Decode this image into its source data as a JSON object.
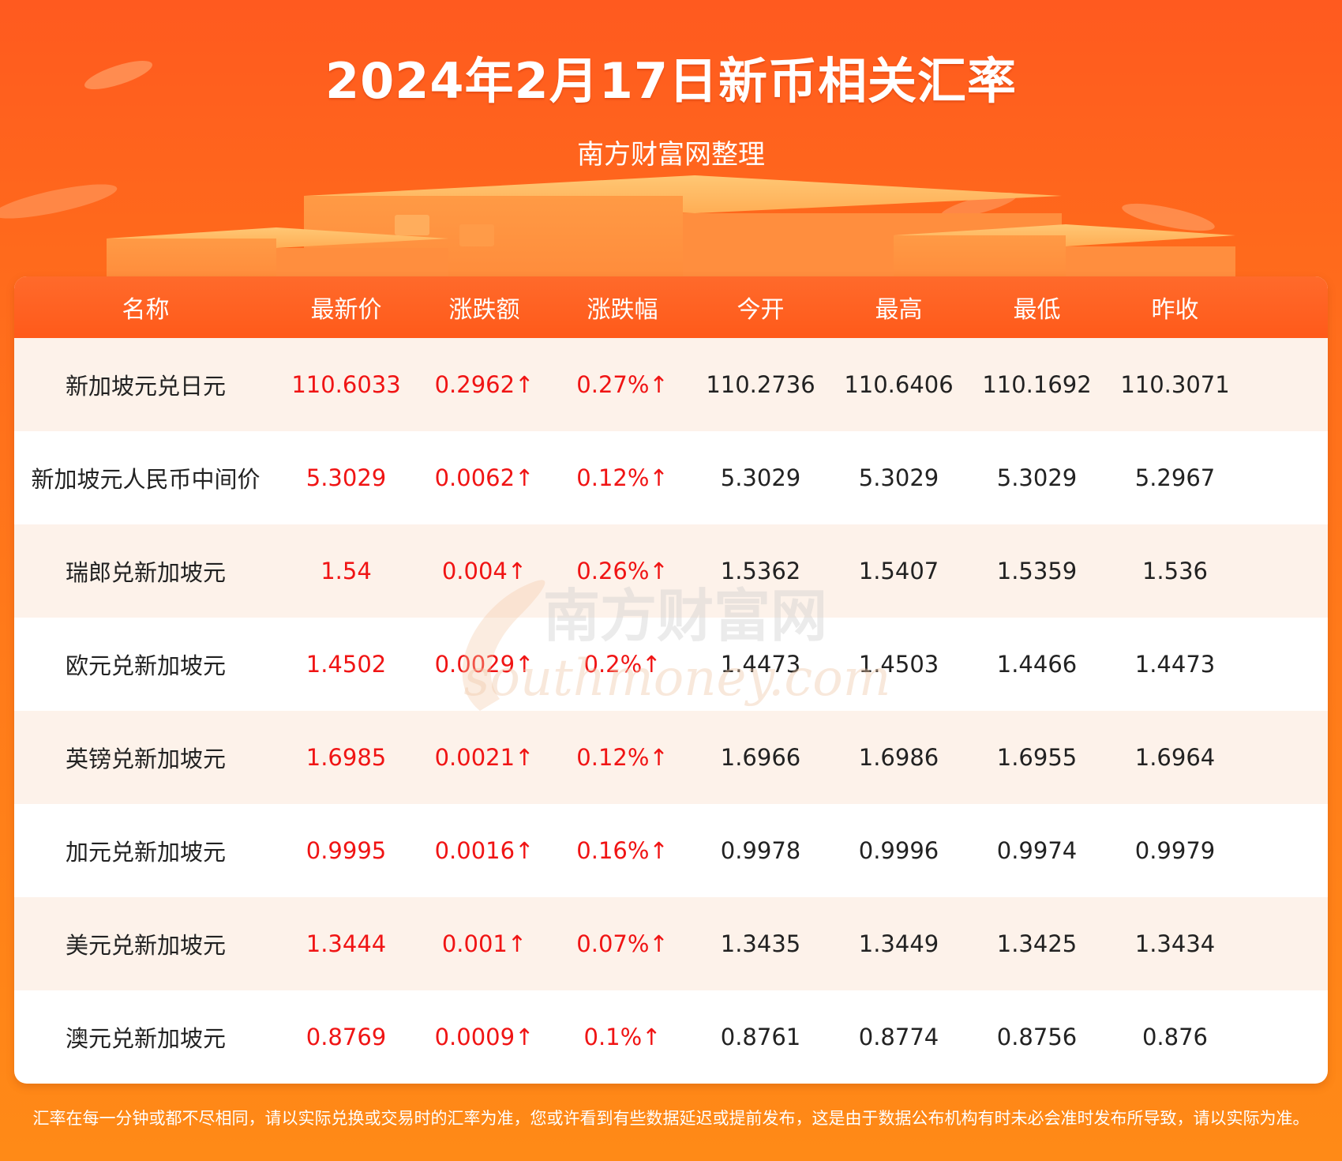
{
  "header": {
    "title": "2024年2月17日新币相关汇率",
    "subtitle": "南方财富网整理"
  },
  "colors": {
    "up": "#f01414",
    "header_bg": "#ff5a1a",
    "row_alt_bg": "#fdf2ea"
  },
  "table": {
    "columns": [
      "名称",
      "最新价",
      "涨跌额",
      "涨跌幅",
      "今开",
      "最高",
      "最低",
      "昨收"
    ],
    "rows": [
      {
        "name": "新加坡元兑日元",
        "latest": "110.6033",
        "change": "0.2962↑",
        "change_pct": "0.27%↑",
        "open": "110.2736",
        "high": "110.6406",
        "low": "110.1692",
        "prev_close": "110.3071"
      },
      {
        "name": "新加坡元人民币中间价",
        "latest": "5.3029",
        "change": "0.0062↑",
        "change_pct": "0.12%↑",
        "open": "5.3029",
        "high": "5.3029",
        "low": "5.3029",
        "prev_close": "5.2967"
      },
      {
        "name": "瑞郎兑新加坡元",
        "latest": "1.54",
        "change": "0.004↑",
        "change_pct": "0.26%↑",
        "open": "1.5362",
        "high": "1.5407",
        "low": "1.5359",
        "prev_close": "1.536"
      },
      {
        "name": "欧元兑新加坡元",
        "latest": "1.4502",
        "change": "0.0029↑",
        "change_pct": "0.2%↑",
        "open": "1.4473",
        "high": "1.4503",
        "low": "1.4466",
        "prev_close": "1.4473"
      },
      {
        "name": "英镑兑新加坡元",
        "latest": "1.6985",
        "change": "0.0021↑",
        "change_pct": "0.12%↑",
        "open": "1.6966",
        "high": "1.6986",
        "low": "1.6955",
        "prev_close": "1.6964"
      },
      {
        "name": "加元兑新加坡元",
        "latest": "0.9995",
        "change": "0.0016↑",
        "change_pct": "0.16%↑",
        "open": "0.9978",
        "high": "0.9996",
        "low": "0.9974",
        "prev_close": "0.9979"
      },
      {
        "name": "美元兑新加坡元",
        "latest": "1.3444",
        "change": "0.001↑",
        "change_pct": "0.07%↑",
        "open": "1.3435",
        "high": "1.3449",
        "low": "1.3425",
        "prev_close": "1.3434"
      },
      {
        "name": "澳元兑新加坡元",
        "latest": "0.8769",
        "change": "0.0009↑",
        "change_pct": "0.1%↑",
        "open": "0.8761",
        "high": "0.8774",
        "low": "0.8756",
        "prev_close": "0.876"
      }
    ]
  },
  "watermark": {
    "cn": "南方财富网",
    "en": "southmoney.com"
  },
  "footer": {
    "note": "汇率在每一分钟或都不尽相同，请以实际兑换或交易时的汇率为准，您或许看到有些数据延迟或提前发布，这是由于数据公布机构有时未必会准时发布所导致，请以实际为准。"
  }
}
